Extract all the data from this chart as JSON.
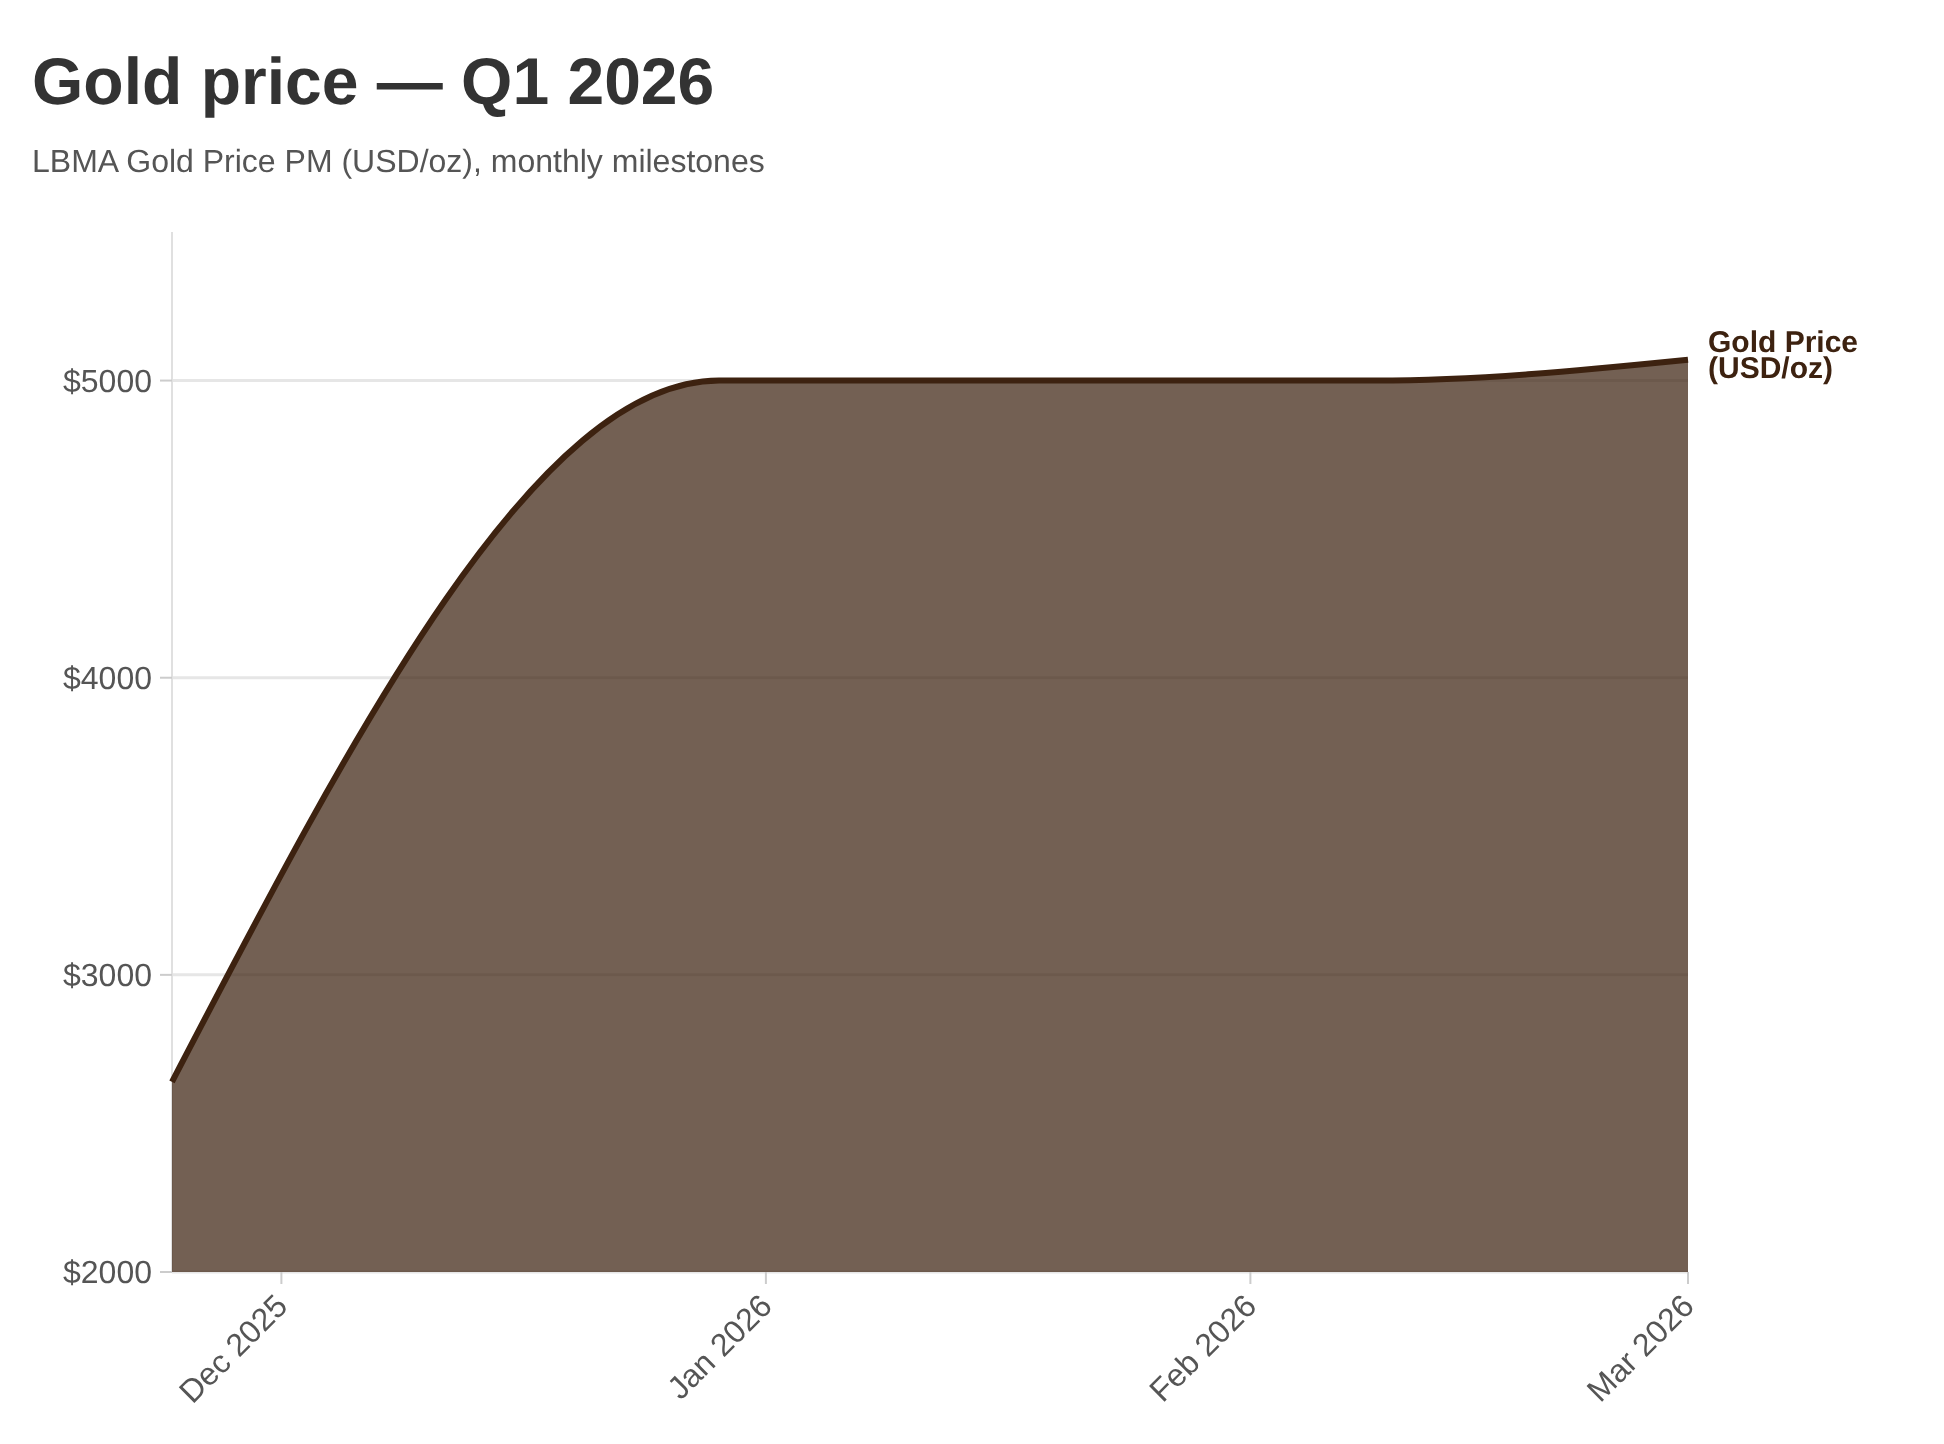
{
  "chart_data": {
    "type": "area",
    "title": "Gold price — Q1 2026",
    "subtitle": "LBMA Gold Price PM (USD/oz), monthly milestones",
    "x": [
      "2025-11-24",
      "2025-12-29",
      "2026-02-09",
      "2026-03-01"
    ],
    "series": [
      {
        "name": "Gold Price (USD/oz)",
        "color": "#3d2210",
        "values": [
          2640,
          5000,
          5000,
          5070
        ]
      }
    ],
    "xlim": [
      "2025-11-24",
      "2026-03-01"
    ],
    "xticks": [
      {
        "value": "2025-12-01",
        "label": "Dec 2025"
      },
      {
        "value": "2026-01-01",
        "label": "Jan 2026"
      },
      {
        "value": "2026-02-01",
        "label": "Feb 2026"
      },
      {
        "value": "2026-03-01",
        "label": "Mar 2026"
      }
    ],
    "ylim": [
      2000,
      5500
    ],
    "yticks": [
      {
        "value": 2000,
        "label": "$2000"
      },
      {
        "value": 3000,
        "label": "$3000"
      },
      {
        "value": 4000,
        "label": "$4000"
      },
      {
        "value": 5000,
        "label": "$5000"
      }
    ],
    "grid": "y",
    "legend": false
  }
}
